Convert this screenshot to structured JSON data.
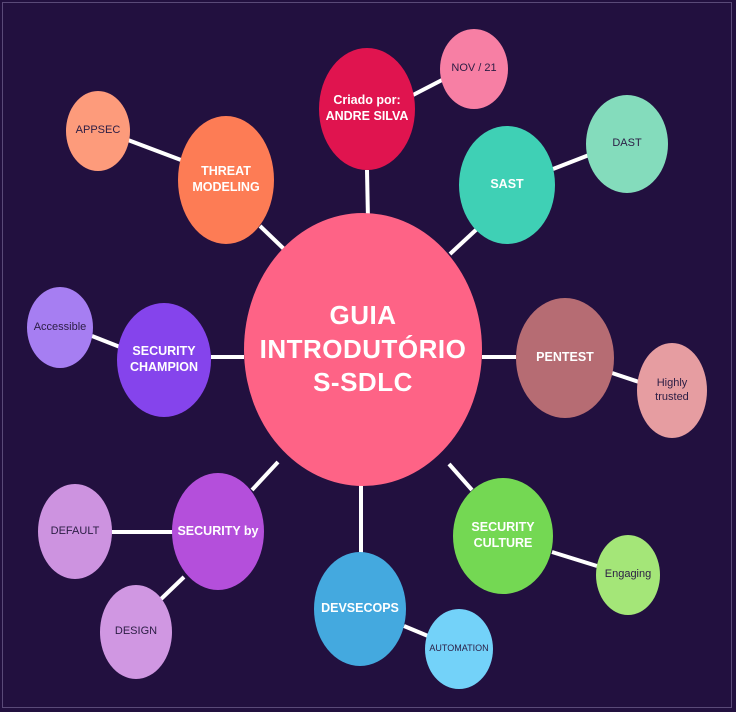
{
  "center": {
    "label": "GUIA\nINTRODUTÓRIO\nS-SDLC",
    "color": "#fe6386"
  },
  "nodes": {
    "criado": {
      "label": "Criado por:\nANDRE SILVA",
      "color": "#e0144f"
    },
    "nov": {
      "label": "NOV / 21",
      "color": "#f77fa4"
    },
    "threat": {
      "label": "THREAT\nMODELING",
      "color": "#fd7c55"
    },
    "appsec": {
      "label": "APPSEC",
      "color": "#fd9b7b"
    },
    "sast": {
      "label": "SAST",
      "color": "#3fd0b5"
    },
    "dast": {
      "label": "DAST",
      "color": "#84dcbc"
    },
    "champion": {
      "label": "SECURITY\nCHAMPION",
      "color": "#8544ec"
    },
    "access": {
      "label": "Accessible",
      "color": "#a67ef2"
    },
    "pentest": {
      "label": "PENTEST",
      "color": "#b66c73"
    },
    "trusted": {
      "label": "Highly\ntrusted",
      "color": "#e69da1"
    },
    "secby": {
      "label": "SECURITY by",
      "color": "#b44fdb"
    },
    "default": {
      "label": "DEFAULT",
      "color": "#cd93e0"
    },
    "design": {
      "label": "DESIGN",
      "color": "#d097e2"
    },
    "devsecops": {
      "label": "DEVSECOPS",
      "color": "#44a9df"
    },
    "automation": {
      "label": "AUTOMATION",
      "color": "#73d2f9"
    },
    "culture": {
      "label": "SECURITY\nCULTURE",
      "color": "#74d853"
    },
    "engaging": {
      "label": "Engaging",
      "color": "#a4e678"
    }
  },
  "colors": {
    "background": "#22103f",
    "connector": "#ffffff"
  }
}
